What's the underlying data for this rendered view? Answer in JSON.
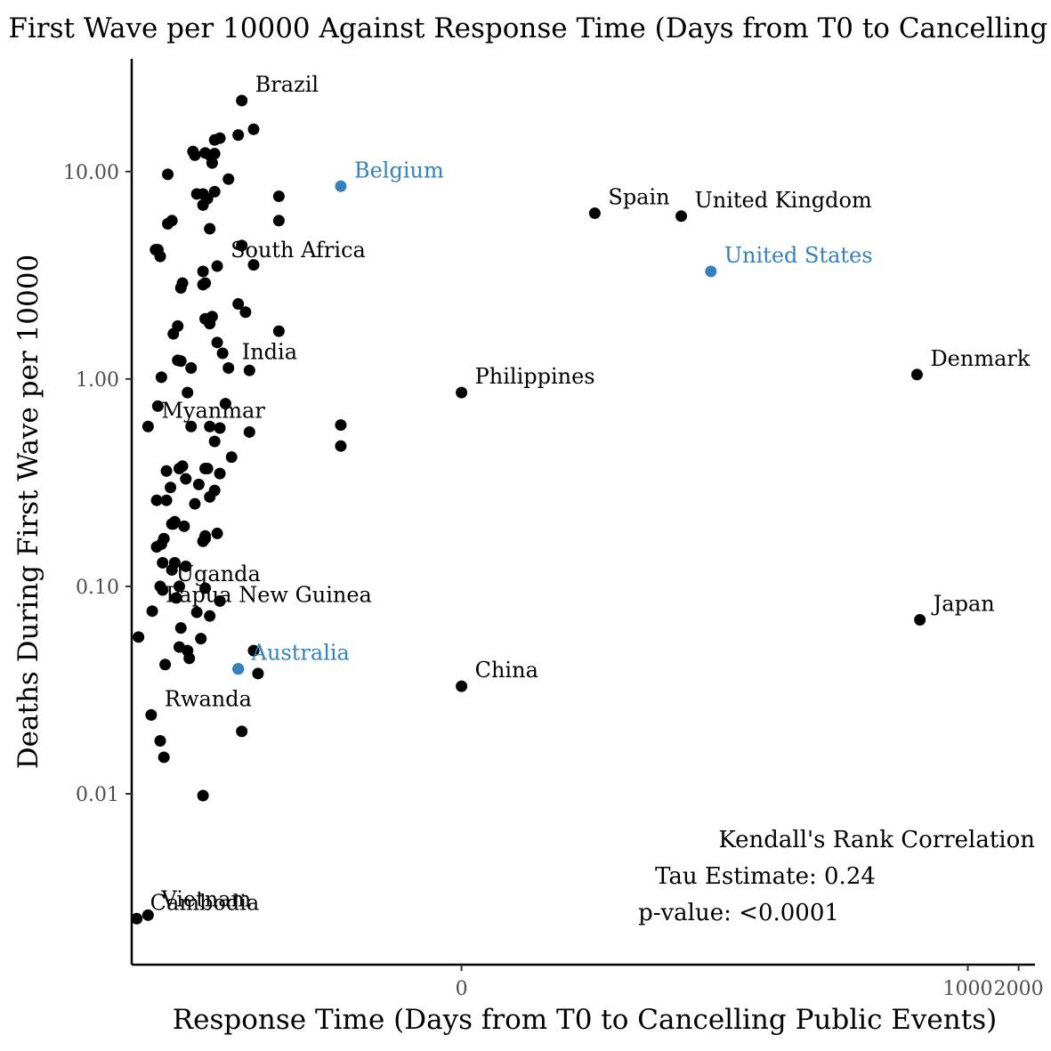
{
  "chart_data": {
    "type": "scatter",
    "title": "Deaths During First Wave per 10000 Against Response Time (Days from T0 to Cancelling Public Events)",
    "xlabel": "Response Time (Days from T0 to Cancelling Public Events)",
    "ylabel": "Deaths During First Wave per 10000",
    "x_scale": "pseudo-log",
    "y_scale": "log10",
    "xlim": [
      -90,
      2500
    ],
    "ylim": [
      0.0015,
      35
    ],
    "x_ticks": [
      {
        "value": 0,
        "label": "0"
      },
      {
        "value": 1000,
        "label": "1000"
      },
      {
        "value": 2000,
        "label": "2000"
      }
    ],
    "y_ticks": [
      {
        "value": 0.01,
        "label": "0.01"
      },
      {
        "value": 0.1,
        "label": "0.10"
      },
      {
        "value": 1,
        "label": "1.00"
      },
      {
        "value": 10,
        "label": "10.00"
      }
    ],
    "highlight_color": "#3182bd",
    "point_color": "#000000",
    "points": [
      {
        "x": -84,
        "y": 0.0025,
        "label": "Cambodia"
      },
      {
        "x": -72,
        "y": 0.0026,
        "label": "Vietnam"
      },
      {
        "x": -82,
        "y": 0.057,
        "label": ""
      },
      {
        "x": -72,
        "y": 0.59,
        "label": "Myanmar"
      },
      {
        "x": -69,
        "y": 0.024,
        "label": "Rwanda"
      },
      {
        "x": -68,
        "y": 0.076,
        "label": "Papua New Guinea"
      },
      {
        "x": -65,
        "y": 4.2,
        "label": ""
      },
      {
        "x": -64,
        "y": 0.26,
        "label": ""
      },
      {
        "x": -64,
        "y": 0.155,
        "label": ""
      },
      {
        "x": -63,
        "y": 4.2,
        "label": ""
      },
      {
        "x": -63,
        "y": 0.74,
        "label": ""
      },
      {
        "x": -61,
        "y": 3.9,
        "label": ""
      },
      {
        "x": -61,
        "y": 0.1,
        "label": ""
      },
      {
        "x": -61,
        "y": 0.018,
        "label": ""
      },
      {
        "x": -60,
        "y": 1.02,
        "label": ""
      },
      {
        "x": -60,
        "y": 0.16,
        "label": ""
      },
      {
        "x": -59,
        "y": 0.13,
        "label": ""
      },
      {
        "x": -59,
        "y": 0.096,
        "label": "Uganda"
      },
      {
        "x": -58,
        "y": 0.17,
        "label": ""
      },
      {
        "x": -58,
        "y": 0.015,
        "label": ""
      },
      {
        "x": -57,
        "y": 0.042,
        "label": ""
      },
      {
        "x": -56,
        "y": 0.26,
        "label": ""
      },
      {
        "x": -56,
        "y": 0.36,
        "label": ""
      },
      {
        "x": -55,
        "y": 9.7,
        "label": ""
      },
      {
        "x": -55,
        "y": 5.6,
        "label": ""
      },
      {
        "x": -53,
        "y": 0.3,
        "label": ""
      },
      {
        "x": -52,
        "y": 5.8,
        "label": ""
      },
      {
        "x": -52,
        "y": 0.2,
        "label": ""
      },
      {
        "x": -52,
        "y": 0.12,
        "label": ""
      },
      {
        "x": -51,
        "y": 1.65,
        "label": ""
      },
      {
        "x": -51,
        "y": 0.2,
        "label": ""
      },
      {
        "x": -50,
        "y": 0.205,
        "label": ""
      },
      {
        "x": -50,
        "y": 0.13,
        "label": ""
      },
      {
        "x": -49,
        "y": 0.088,
        "label": ""
      },
      {
        "x": -48,
        "y": 1.8,
        "label": ""
      },
      {
        "x": -48,
        "y": 1.23,
        "label": ""
      },
      {
        "x": -47,
        "y": 0.37,
        "label": ""
      },
      {
        "x": -47,
        "y": 0.1,
        "label": ""
      },
      {
        "x": -47,
        "y": 0.051,
        "label": ""
      },
      {
        "x": -46,
        "y": 2.75,
        "label": ""
      },
      {
        "x": -46,
        "y": 1.22,
        "label": ""
      },
      {
        "x": -46,
        "y": 0.063,
        "label": ""
      },
      {
        "x": -45,
        "y": 2.9,
        "label": ""
      },
      {
        "x": -45,
        "y": 0.38,
        "label": ""
      },
      {
        "x": -44,
        "y": 0.195,
        "label": ""
      },
      {
        "x": -43,
        "y": 0.33,
        "label": ""
      },
      {
        "x": -43,
        "y": 0.125,
        "label": ""
      },
      {
        "x": -42,
        "y": 0.049,
        "label": ""
      },
      {
        "x": -42,
        "y": 0.86,
        "label": ""
      },
      {
        "x": -41,
        "y": 0.045,
        "label": ""
      },
      {
        "x": -40,
        "y": 1.13,
        "label": ""
      },
      {
        "x": -40,
        "y": 0.59,
        "label": ""
      },
      {
        "x": -39,
        "y": 12.5,
        "label": ""
      },
      {
        "x": -38,
        "y": 12.0,
        "label": ""
      },
      {
        "x": -38,
        "y": 0.25,
        "label": ""
      },
      {
        "x": -37,
        "y": 7.8,
        "label": ""
      },
      {
        "x": -37,
        "y": 0.075,
        "label": ""
      },
      {
        "x": -36,
        "y": 0.31,
        "label": ""
      },
      {
        "x": -35,
        "y": 0.056,
        "label": ""
      },
      {
        "x": -34,
        "y": 7.8,
        "label": ""
      },
      {
        "x": -34,
        "y": 6.9,
        "label": ""
      },
      {
        "x": -34,
        "y": 3.3,
        "label": ""
      },
      {
        "x": -34,
        "y": 2.85,
        "label": ""
      },
      {
        "x": -34,
        "y": 0.165,
        "label": ""
      },
      {
        "x": -34,
        "y": 0.0098,
        "label": ""
      },
      {
        "x": -33,
        "y": 0.175,
        "label": ""
      },
      {
        "x": -33,
        "y": 12.3,
        "label": ""
      },
      {
        "x": -33,
        "y": 2.9,
        "label": ""
      },
      {
        "x": -33,
        "y": 1.95,
        "label": ""
      },
      {
        "x": -33,
        "y": 0.37,
        "label": ""
      },
      {
        "x": -33,
        "y": 0.17,
        "label": ""
      },
      {
        "x": -33,
        "y": 0.098,
        "label": ""
      },
      {
        "x": -32,
        "y": 7.4,
        "label": ""
      },
      {
        "x": -32,
        "y": 0.37,
        "label": ""
      },
      {
        "x": -31,
        "y": 12.0,
        "label": ""
      },
      {
        "x": -31,
        "y": 5.3,
        "label": ""
      },
      {
        "x": -31,
        "y": 1.85,
        "label": ""
      },
      {
        "x": -31,
        "y": 0.59,
        "label": ""
      },
      {
        "x": -31,
        "y": 0.27,
        "label": ""
      },
      {
        "x": -31,
        "y": 0.072,
        "label": ""
      },
      {
        "x": -30,
        "y": 11.0,
        "label": ""
      },
      {
        "x": -30,
        "y": 2.0,
        "label": ""
      },
      {
        "x": -29,
        "y": 12.2,
        "label": ""
      },
      {
        "x": -29,
        "y": 14.2,
        "label": ""
      },
      {
        "x": -29,
        "y": 8.0,
        "label": ""
      },
      {
        "x": -29,
        "y": 0.5,
        "label": ""
      },
      {
        "x": -29,
        "y": 0.29,
        "label": ""
      },
      {
        "x": -28,
        "y": 3.5,
        "label": "South Africa"
      },
      {
        "x": -28,
        "y": 1.5,
        "label": ""
      },
      {
        "x": -28,
        "y": 0.18,
        "label": ""
      },
      {
        "x": -27,
        "y": 14.5,
        "label": ""
      },
      {
        "x": -27,
        "y": 0.58,
        "label": ""
      },
      {
        "x": -27,
        "y": 0.35,
        "label": ""
      },
      {
        "x": -27,
        "y": 0.085,
        "label": ""
      },
      {
        "x": -26,
        "y": 1.33,
        "label": ""
      },
      {
        "x": -25,
        "y": 0.76,
        "label": ""
      },
      {
        "x": -24,
        "y": 9.2,
        "label": ""
      },
      {
        "x": -24,
        "y": 1.13,
        "label": "India"
      },
      {
        "x": -23,
        "y": 0.42,
        "label": ""
      },
      {
        "x": -21,
        "y": 15.0,
        "label": ""
      },
      {
        "x": -21,
        "y": 2.3,
        "label": ""
      },
      {
        "x": -21,
        "y": 0.04,
        "label": ""
      },
      {
        "x": -20,
        "y": 4.4,
        "label": ""
      },
      {
        "x": -20,
        "y": 22.0,
        "label": "Brazil"
      },
      {
        "x": -20,
        "y": 0.02,
        "label": ""
      },
      {
        "x": -19,
        "y": 2.1,
        "label": ""
      },
      {
        "x": -18,
        "y": 1.1,
        "label": ""
      },
      {
        "x": -18,
        "y": 0.555,
        "label": ""
      },
      {
        "x": -17,
        "y": 16.0,
        "label": ""
      },
      {
        "x": -17,
        "y": 3.55,
        "label": ""
      },
      {
        "x": -17,
        "y": 0.049,
        "label": ""
      },
      {
        "x": -16,
        "y": 0.038,
        "label": ""
      },
      {
        "x": -12,
        "y": 7.6,
        "label": ""
      },
      {
        "x": -12,
        "y": 5.8,
        "label": ""
      },
      {
        "x": -12,
        "y": 1.7,
        "label": ""
      },
      {
        "x": -5,
        "y": 0.6,
        "label": ""
      },
      {
        "x": -5,
        "y": 0.475,
        "label": ""
      },
      {
        "x": -5,
        "y": 8.5,
        "label": "Belgium",
        "highlight": true
      },
      {
        "x": -21,
        "y": 0.04,
        "label": "Australia",
        "highlight": true
      },
      {
        "x": 0,
        "y": 0.86,
        "label": "Philippines"
      },
      {
        "x": 0,
        "y": 0.033,
        "label": "China"
      },
      {
        "x": 6,
        "y": 6.3,
        "label": "Spain"
      },
      {
        "x": 20,
        "y": 6.1,
        "label": "United Kingdom"
      },
      {
        "x": 30,
        "y": 3.3,
        "label": "United States",
        "highlight": true
      },
      {
        "x": 500,
        "y": 1.05,
        "label": "Denmark"
      },
      {
        "x": 520,
        "y": 0.069,
        "label": "Japan"
      }
    ],
    "annotations": [
      "Kendall's Rank Correlation",
      "Tau Estimate: 0.24",
      "p-value: <0.0001"
    ]
  }
}
